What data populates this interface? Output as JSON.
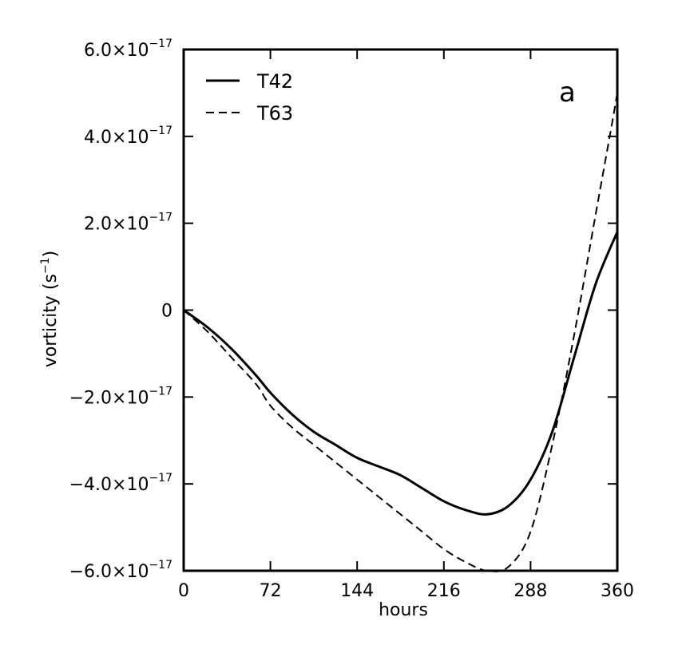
{
  "chart_data": {
    "type": "line",
    "panel_label": "a",
    "xlabel": "hours",
    "ylabel": "vorticity (s",
    "ylabel_sup": "−1",
    "ylabel_close": ")",
    "xlim": [
      0,
      360
    ],
    "ylim": [
      -6e-17,
      6e-17
    ],
    "x_ticks": [
      0,
      72,
      144,
      216,
      288,
      360
    ],
    "x_tick_labels": [
      "0",
      "72",
      "144",
      "216",
      "288",
      "360"
    ],
    "y_ticks": [
      6e-17,
      4e-17,
      2e-17,
      0,
      -2e-17,
      -4e-17,
      -6e-17
    ],
    "y_tick_labels": [
      {
        "base": "6.0×10",
        "exp": "−17"
      },
      {
        "base": "4.0×10",
        "exp": "−17"
      },
      {
        "base": "2.0×10",
        "exp": "−17"
      },
      {
        "base": "0",
        "exp": ""
      },
      {
        "base": "−2.0×10",
        "exp": "−17"
      },
      {
        "base": "−4.0×10",
        "exp": "−17"
      },
      {
        "base": "−6.0×10",
        "exp": "−17"
      }
    ],
    "grid": false,
    "legend_position": "top-left",
    "series": [
      {
        "name": "T42",
        "style": "solid",
        "x": [
          0,
          20,
          40,
          60,
          72,
          90,
          108,
          126,
          144,
          162,
          180,
          198,
          216,
          234,
          252,
          270,
          288,
          306,
          324,
          342,
          360
        ],
        "y": [
          0,
          -4e-18,
          -9e-18,
          -1.5e-17,
          -1.9e-17,
          -2.4e-17,
          -2.8e-17,
          -3.1e-17,
          -3.4e-17,
          -3.6e-17,
          -3.8e-17,
          -4.1e-17,
          -4.4e-17,
          -4.6e-17,
          -4.7e-17,
          -4.5e-17,
          -3.9e-17,
          -2.8e-17,
          -1.1e-17,
          6e-18,
          1.8e-17
        ]
      },
      {
        "name": "T63",
        "style": "dashed",
        "x": [
          0,
          20,
          40,
          60,
          72,
          90,
          108,
          126,
          144,
          162,
          180,
          198,
          216,
          234,
          252,
          270,
          288,
          306,
          324,
          342,
          355,
          360
        ],
        "y": [
          0,
          -5e-18,
          -1.1e-17,
          -1.7e-17,
          -2.2e-17,
          -2.7e-17,
          -3.1e-17,
          -3.5e-17,
          -3.9e-17,
          -4.3e-17,
          -4.7e-17,
          -5.1e-17,
          -5.5e-17,
          -5.8e-17,
          -6e-17,
          -5.9e-17,
          -5.1e-17,
          -3.1e-17,
          -6e-18,
          2.2e-17,
          4.2e-17,
          5e-17
        ]
      }
    ]
  }
}
